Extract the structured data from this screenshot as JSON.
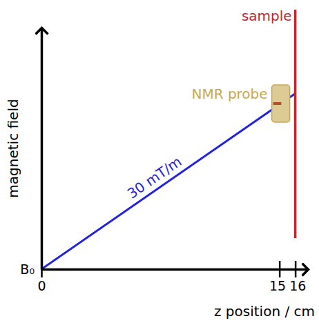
{
  "chart_data": {
    "type": "line",
    "xlabel": "z position / cm",
    "ylabel": "magnetic field",
    "x": [
      0,
      16
    ],
    "values": [
      0,
      4.8
    ],
    "color": "#2222dd",
    "xlim": [
      0,
      16.8
    ],
    "xticks": [
      0,
      15,
      16
    ],
    "ylim": [
      0,
      6.6
    ],
    "yticks": [
      {
        "value": 0,
        "label": "B₀"
      }
    ],
    "annotations": [
      {
        "text": "30 mT/m",
        "color": "#2222dd"
      }
    ],
    "probe": {
      "label": "NMR probe",
      "color": "#c8a850"
    },
    "sample": {
      "label": "sample",
      "x": 16,
      "color": "#c1272d"
    }
  }
}
